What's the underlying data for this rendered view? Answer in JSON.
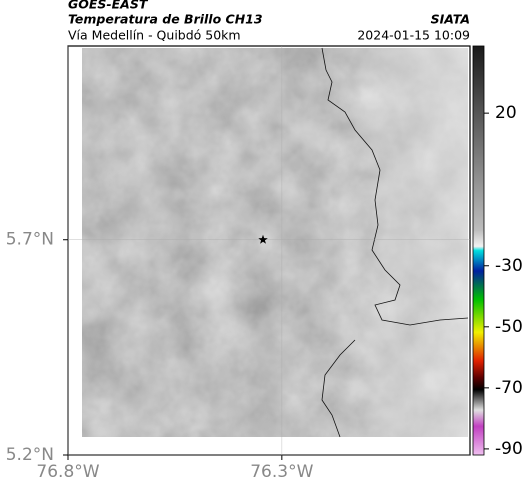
{
  "header": {
    "satellite": "GOES-EAST",
    "product": "Temperatura de Brillo CH13",
    "region": "Vía Medellín - Quibdó 50km",
    "source": "SIATA",
    "datetime": "2024-01-15 10:09"
  },
  "map": {
    "xlim": [
      -76.8,
      -75.86
    ],
    "ylim": [
      5.2,
      6.15
    ],
    "xticks": [
      {
        "value": -76.8,
        "label": "76.8°W"
      },
      {
        "value": -76.3,
        "label": "76.3°W"
      }
    ],
    "yticks": [
      {
        "value": 5.2,
        "label": "5.2°N"
      },
      {
        "value": 5.7,
        "label": "5.7°N"
      }
    ],
    "grid": true,
    "marker": {
      "lon": -76.344,
      "lat": 5.7
    }
  },
  "colorbar": {
    "lim": [
      -92,
      42
    ],
    "ticks": [
      20,
      -30,
      -50,
      -70,
      -90
    ]
  }
}
